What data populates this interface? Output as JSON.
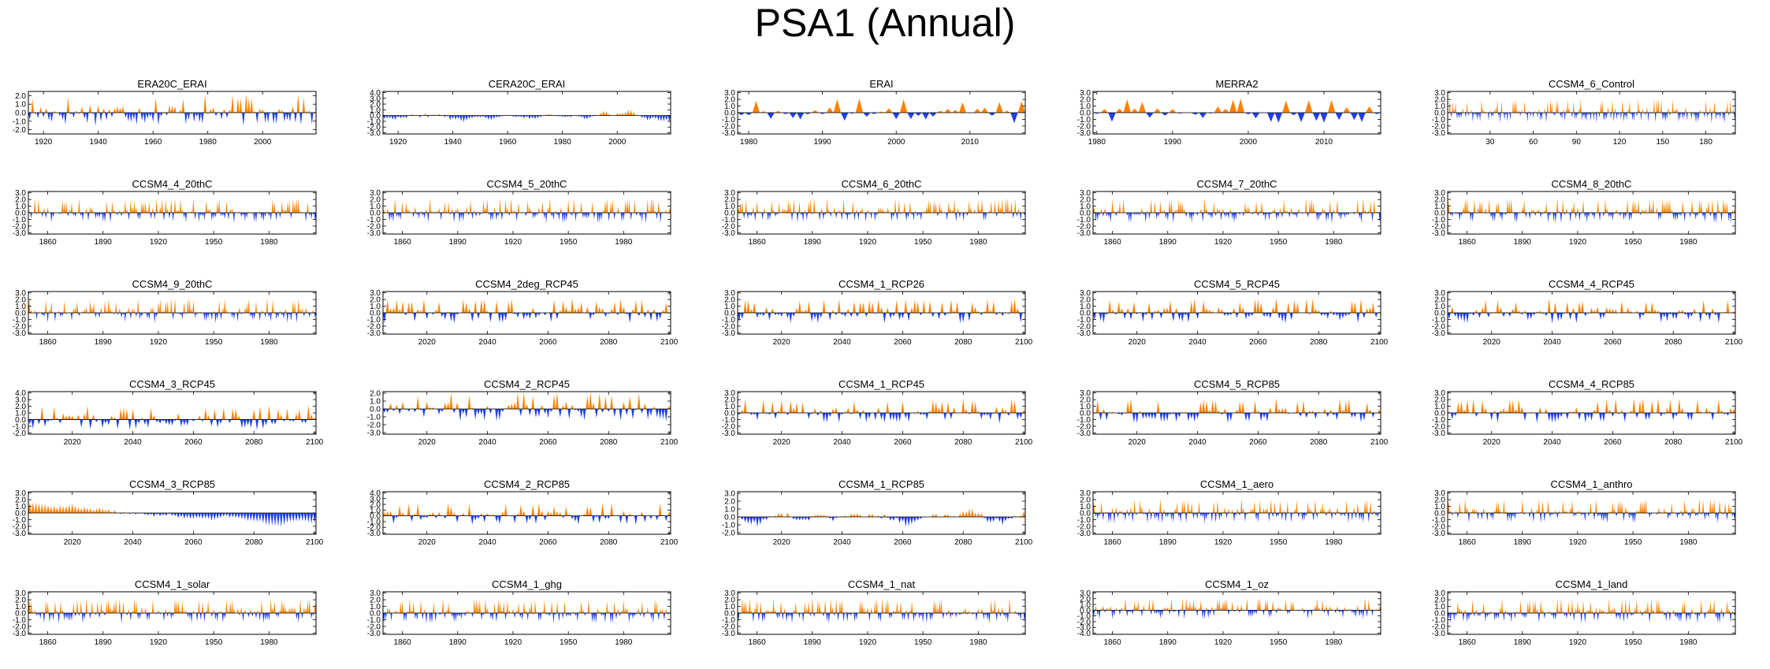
{
  "figure": {
    "title": "PSA1 (Annual)"
  },
  "colors": {
    "positive": "#ff8000",
    "negative": "#1f3fe6",
    "axis": "#000000"
  },
  "chart_data": [
    {
      "type": "area",
      "title": "ERA20C_ERAI",
      "n": 105,
      "x0": 1915,
      "x_ticks": [
        1920,
        1940,
        1960,
        1980,
        2000
      ],
      "y_ticks": [
        "2.0",
        "1.0",
        "0.0",
        "-1.0",
        "-2.0"
      ],
      "ylim": [
        -2.5,
        2.5
      ],
      "smooth": false
    },
    {
      "type": "area",
      "title": "CERA20C_ERAI",
      "n": 105,
      "x0": 1915,
      "x_ticks": [
        1920,
        1940,
        1960,
        1980,
        2000
      ],
      "y_ticks": [
        "4.0",
        "3.0",
        "2.0",
        "1.0",
        "0.0",
        "-1.0",
        "-2.0",
        "-3.0"
      ],
      "ylim": [
        -3.2,
        4.2
      ],
      "smooth": true
    },
    {
      "type": "area",
      "title": "ERAI",
      "n": 39,
      "x0": 1979,
      "x_ticks": [
        1980,
        1990,
        2000,
        2010
      ],
      "y_ticks": [
        "3.0",
        "2.0",
        "1.0",
        "0.0",
        "-1.0",
        "-2.0",
        "-3.0"
      ],
      "ylim": [
        -3.2,
        3.2
      ],
      "smooth": false
    },
    {
      "type": "area",
      "title": "MERRA2",
      "n": 38,
      "x0": 1980,
      "x_ticks": [
        1980,
        1990,
        2000,
        2010
      ],
      "y_ticks": [
        "3.0",
        "2.0",
        "1.0",
        "0.0",
        "-1.0",
        "-2.0",
        "-3.0"
      ],
      "ylim": [
        -3.2,
        3.2
      ],
      "smooth": false
    },
    {
      "type": "area",
      "title": "CCSM4_6_Control",
      "n": 200,
      "x0": 1,
      "x_ticks": [
        30,
        60,
        90,
        120,
        150,
        180
      ],
      "y_ticks": [
        "3.0",
        "2.0",
        "1.0",
        "0.0",
        "-1.0",
        "-2.0",
        "-3.0"
      ],
      "ylim": [
        -3.2,
        3.2
      ],
      "smooth": false
    },
    {
      "type": "area",
      "title": "CCSM4_4_20thC",
      "n": 156,
      "x0": 1850,
      "x_ticks": [
        1860,
        1890,
        1920,
        1950,
        1980
      ],
      "y_ticks": [
        "3.0",
        "2.0",
        "1.0",
        "0.0",
        "-1.0",
        "-2.0",
        "-3.0"
      ],
      "ylim": [
        -3.2,
        3.2
      ],
      "smooth": false
    },
    {
      "type": "area",
      "title": "CCSM4_5_20thC",
      "n": 156,
      "x0": 1850,
      "x_ticks": [
        1860,
        1890,
        1920,
        1950,
        1980
      ],
      "y_ticks": [
        "3.0",
        "2.0",
        "1.0",
        "0.0",
        "-1.0",
        "-2.0",
        "-3.0"
      ],
      "ylim": [
        -3.2,
        3.2
      ],
      "smooth": false
    },
    {
      "type": "area",
      "title": "CCSM4_6_20thC",
      "n": 156,
      "x0": 1850,
      "x_ticks": [
        1860,
        1890,
        1920,
        1950,
        1980
      ],
      "y_ticks": [
        "3.0",
        "2.0",
        "1.0",
        "0.0",
        "-1.0",
        "-2.0",
        "-3.0"
      ],
      "ylim": [
        -3.2,
        3.2
      ],
      "smooth": false
    },
    {
      "type": "area",
      "title": "CCSM4_7_20thC",
      "n": 156,
      "x0": 1850,
      "x_ticks": [
        1860,
        1890,
        1920,
        1950,
        1980
      ],
      "y_ticks": [
        "3.0",
        "2.0",
        "1.0",
        "0.0",
        "-1.0",
        "-2.0",
        "-3.0"
      ],
      "ylim": [
        -3.2,
        3.2
      ],
      "smooth": false
    },
    {
      "type": "area",
      "title": "CCSM4_8_20thC",
      "n": 156,
      "x0": 1850,
      "x_ticks": [
        1860,
        1890,
        1920,
        1950,
        1980
      ],
      "y_ticks": [
        "3.0",
        "2.0",
        "1.0",
        "0.0",
        "-1.0",
        "-2.0",
        "-3.0"
      ],
      "ylim": [
        -3.2,
        3.2
      ],
      "smooth": false
    },
    {
      "type": "area",
      "title": "CCSM4_9_20thC",
      "n": 156,
      "x0": 1850,
      "x_ticks": [
        1860,
        1890,
        1920,
        1950,
        1980
      ],
      "y_ticks": [
        "3.0",
        "2.0",
        "1.0",
        "0.0",
        "-1.0",
        "-2.0",
        "-3.0"
      ],
      "ylim": [
        -3.2,
        3.2
      ],
      "smooth": false
    },
    {
      "type": "area",
      "title": "CCSM4_2deg_RCP45",
      "n": 95,
      "x0": 2006,
      "x_ticks": [
        2020,
        2040,
        2060,
        2080,
        2100
      ],
      "y_ticks": [
        "3.0",
        "2.0",
        "1.0",
        "0.0",
        "-1.0",
        "-2.0",
        "-3.0"
      ],
      "ylim": [
        -3.2,
        3.2
      ],
      "smooth": false
    },
    {
      "type": "area",
      "title": "CCSM4_1_RCP26",
      "n": 95,
      "x0": 2006,
      "x_ticks": [
        2020,
        2040,
        2060,
        2080,
        2100
      ],
      "y_ticks": [
        "3.0",
        "2.0",
        "1.0",
        "0.0",
        "-1.0",
        "-2.0",
        "-3.0"
      ],
      "ylim": [
        -3.2,
        3.2
      ],
      "smooth": false
    },
    {
      "type": "area",
      "title": "CCSM4_5_RCP45",
      "n": 95,
      "x0": 2006,
      "x_ticks": [
        2020,
        2040,
        2060,
        2080,
        2100
      ],
      "y_ticks": [
        "3.0",
        "2.0",
        "1.0",
        "0.0",
        "-1.0",
        "-2.0",
        "-3.0"
      ],
      "ylim": [
        -3.2,
        3.2
      ],
      "smooth": false
    },
    {
      "type": "area",
      "title": "CCSM4_4_RCP45",
      "n": 95,
      "x0": 2006,
      "x_ticks": [
        2020,
        2040,
        2060,
        2080,
        2100
      ],
      "y_ticks": [
        "3.0",
        "2.0",
        "1.0",
        "0.0",
        "-1.0",
        "-2.0",
        "-3.0"
      ],
      "ylim": [
        -3.2,
        3.2
      ],
      "smooth": false
    },
    {
      "type": "area",
      "title": "CCSM4_3_RCP45",
      "n": 95,
      "x0": 2006,
      "x_ticks": [
        2020,
        2040,
        2060,
        2080,
        2100
      ],
      "y_ticks": [
        "4.0",
        "3.0",
        "2.0",
        "1.0",
        "0.0",
        "-1.0",
        "-2.0"
      ],
      "ylim": [
        -2.2,
        4.2
      ],
      "smooth": false
    },
    {
      "type": "area",
      "title": "CCSM4_2_RCP45",
      "n": 95,
      "x0": 2006,
      "x_ticks": [
        2020,
        2040,
        2060,
        2080,
        2100
      ],
      "y_ticks": [
        "2.0",
        "1.0",
        "0.0",
        "-1.0",
        "-2.0",
        "-3.0"
      ],
      "ylim": [
        -3.2,
        2.2
      ],
      "smooth": false
    },
    {
      "type": "area",
      "title": "CCSM4_1_RCP45",
      "n": 95,
      "x0": 2006,
      "x_ticks": [
        2020,
        2040,
        2060,
        2080,
        2100
      ],
      "y_ticks": [
        "3.0",
        "2.0",
        "1.0",
        "0.0",
        "-1.0",
        "-2.0",
        "-3.0"
      ],
      "ylim": [
        -3.2,
        3.2
      ],
      "smooth": false
    },
    {
      "type": "area",
      "title": "CCSM4_5_RCP85",
      "n": 95,
      "x0": 2006,
      "x_ticks": [
        2020,
        2040,
        2060,
        2080,
        2100
      ],
      "y_ticks": [
        "3.0",
        "2.0",
        "1.0",
        "0.0",
        "-1.0",
        "-2.0",
        "-3.0"
      ],
      "ylim": [
        -3.2,
        3.2
      ],
      "smooth": false
    },
    {
      "type": "area",
      "title": "CCSM4_4_RCP85",
      "n": 95,
      "x0": 2006,
      "x_ticks": [
        2020,
        2040,
        2060,
        2080,
        2100
      ],
      "y_ticks": [
        "3.0",
        "2.0",
        "1.0",
        "0.0",
        "-1.0",
        "-2.0",
        "-3.0"
      ],
      "ylim": [
        -3.2,
        3.2
      ],
      "smooth": false
    },
    {
      "type": "area",
      "title": "CCSM4_3_RCP85",
      "n": 95,
      "x0": 2006,
      "x_ticks": [
        2020,
        2040,
        2060,
        2080,
        2100
      ],
      "y_ticks": [
        "3.0",
        "2.0",
        "1.0",
        "0.0",
        "-1.0",
        "-2.0",
        "-3.0"
      ],
      "ylim": [
        -3.2,
        3.2
      ],
      "smooth": true,
      "trend": true
    },
    {
      "type": "area",
      "title": "CCSM4_2_RCP85",
      "n": 95,
      "x0": 2006,
      "x_ticks": [
        2020,
        2040,
        2060,
        2080,
        2100
      ],
      "y_ticks": [
        "4.0",
        "3.0",
        "2.0",
        "1.0",
        "0.0",
        "-1.0",
        "-2.0",
        "-3.0"
      ],
      "ylim": [
        -3.2,
        4.2
      ],
      "smooth": false
    },
    {
      "type": "area",
      "title": "CCSM4_1_RCP85",
      "n": 95,
      "x0": 2006,
      "x_ticks": [
        2020,
        2040,
        2060,
        2080,
        2100
      ],
      "y_ticks": [
        "3.0",
        "2.0",
        "1.0",
        "0.0",
        "-1.0",
        "-2.0"
      ],
      "ylim": [
        -2.2,
        3.2
      ],
      "smooth": true
    },
    {
      "type": "area",
      "title": "CCSM4_1_aero",
      "n": 156,
      "x0": 1850,
      "x_ticks": [
        1860,
        1890,
        1920,
        1950,
        1980
      ],
      "y_ticks": [
        "3.0",
        "2.0",
        "1.0",
        "0.0",
        "-1.0",
        "-2.0",
        "-3.0"
      ],
      "ylim": [
        -3.2,
        3.2
      ],
      "smooth": false
    },
    {
      "type": "area",
      "title": "CCSM4_1_anthro",
      "n": 156,
      "x0": 1850,
      "x_ticks": [
        1860,
        1890,
        1920,
        1950,
        1980
      ],
      "y_ticks": [
        "3.0",
        "2.0",
        "1.0",
        "0.0",
        "-1.0",
        "-2.0",
        "-3.0"
      ],
      "ylim": [
        -3.2,
        3.2
      ],
      "smooth": false
    },
    {
      "type": "area",
      "title": "CCSM4_1_solar",
      "n": 156,
      "x0": 1850,
      "x_ticks": [
        1860,
        1890,
        1920,
        1950,
        1980
      ],
      "y_ticks": [
        "3.0",
        "2.0",
        "1.0",
        "0.0",
        "-1.0",
        "-2.0",
        "-3.0"
      ],
      "ylim": [
        -3.2,
        3.2
      ],
      "smooth": false
    },
    {
      "type": "area",
      "title": "CCSM4_1_ghg",
      "n": 156,
      "x0": 1850,
      "x_ticks": [
        1860,
        1890,
        1920,
        1950,
        1980
      ],
      "y_ticks": [
        "3.0",
        "2.0",
        "1.0",
        "0.0",
        "-1.0",
        "-2.0",
        "-3.0"
      ],
      "ylim": [
        -3.2,
        3.2
      ],
      "smooth": false
    },
    {
      "type": "area",
      "title": "CCSM4_1_nat",
      "n": 156,
      "x0": 1850,
      "x_ticks": [
        1860,
        1890,
        1920,
        1950,
        1980
      ],
      "y_ticks": [
        "3.0",
        "2.0",
        "1.0",
        "0.0",
        "-1.0",
        "-2.0",
        "-3.0"
      ],
      "ylim": [
        -3.2,
        3.2
      ],
      "smooth": false
    },
    {
      "type": "area",
      "title": "CCSM4_1_oz",
      "n": 156,
      "x0": 1850,
      "x_ticks": [
        1860,
        1890,
        1920,
        1950,
        1980
      ],
      "y_ticks": [
        "3.0",
        "2.0",
        "1.0",
        "0.0",
        "-1.0",
        "-2.0",
        "-3.0",
        "-4.0"
      ],
      "ylim": [
        -4.2,
        3.2
      ],
      "smooth": false
    },
    {
      "type": "area",
      "title": "CCSM4_1_land",
      "n": 156,
      "x0": 1850,
      "x_ticks": [
        1860,
        1890,
        1920,
        1950,
        1980
      ],
      "y_ticks": [
        "3.0",
        "2.0",
        "1.0",
        "0.0",
        "-1.0",
        "-2.0",
        "-3.0"
      ],
      "ylim": [
        -3.2,
        3.2
      ],
      "smooth": false
    }
  ]
}
